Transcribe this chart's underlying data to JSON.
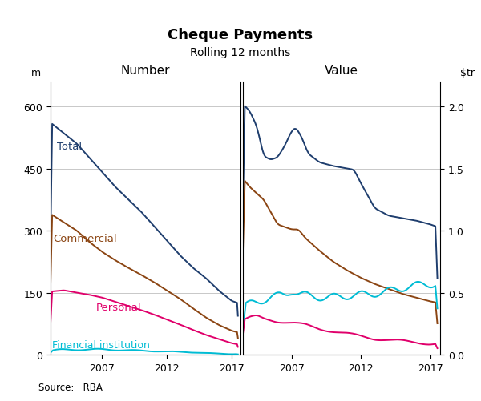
{
  "title": "Cheque Payments",
  "subtitle": "Rolling 12 months",
  "source": "Source:   RBA",
  "left_ylabel": "m",
  "right_ylabel": "$tr",
  "left_panel_label": "Number",
  "right_panel_label": "Value",
  "left_ylim": [
    0,
    660
  ],
  "right_ylim": [
    0.0,
    2.2
  ],
  "left_yticks": [
    0,
    150,
    300,
    450,
    600
  ],
  "right_yticks": [
    0.0,
    0.5,
    1.0,
    1.5,
    2.0
  ],
  "colors": {
    "total": "#1f3e6e",
    "commercial": "#8b4513",
    "personal": "#e0006b",
    "financial": "#00bcd4"
  },
  "background": "#ffffff",
  "grid_color": "#c8c8c8"
}
